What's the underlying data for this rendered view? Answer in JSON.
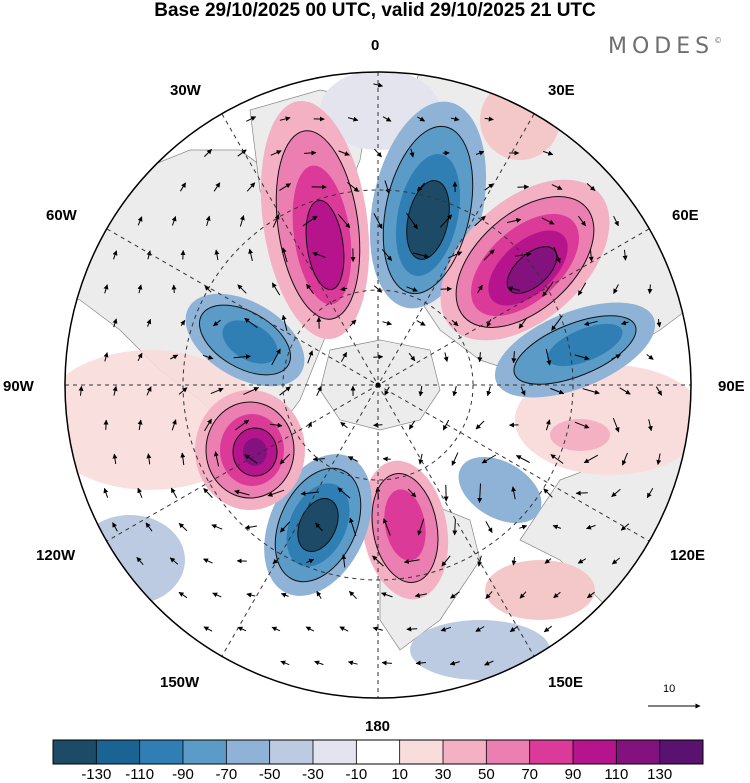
{
  "title": "Base 29/10/2025 00 UTC, valid 29/10/2025 21 UTC",
  "brand": "MODES",
  "brand_mark": "©",
  "longitude_labels": {
    "n0": "0",
    "e30": "30E",
    "e60": "60E",
    "e90": "90E",
    "e120": "120E",
    "e150": "150E",
    "s180": "180",
    "w150": "150W",
    "w120": "120W",
    "w90": "90W",
    "w60": "60W",
    "w30": "30W"
  },
  "reference_vector": "10",
  "colorbar": {
    "ticks": [
      "-130",
      "-110",
      "-90",
      "-70",
      "-50",
      "-30",
      "-10",
      "10",
      "30",
      "50",
      "70",
      "90",
      "110",
      "130"
    ],
    "colors": [
      "#1d4a66",
      "#1a6494",
      "#2f7fb5",
      "#5b9bc7",
      "#8fb3d6",
      "#bccbe2",
      "#e4e4ef",
      "#ffffff",
      "#f9dcdc",
      "#f4b1c3",
      "#ec7fb1",
      "#dc3a98",
      "#b5148c",
      "#83127f",
      "#591270"
    ]
  },
  "colors": {
    "land": "#ececec",
    "graticule": "#333333",
    "contour": "#111111"
  }
}
